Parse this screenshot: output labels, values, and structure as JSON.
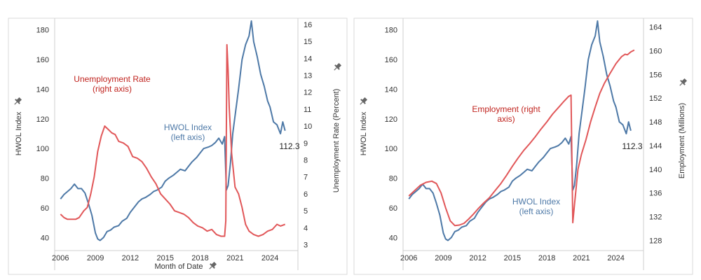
{
  "colors": {
    "hwol": "#4e79a7",
    "secondary": "#e15759",
    "annotation_red": "#c0231e",
    "annotation_blue": "#4e79a7",
    "grid": "#e6e6e6",
    "pin_icon": "#666666"
  },
  "chart_data": [
    {
      "type": "line",
      "xlabel": "Month of Date",
      "ylabel": "HWOL Index",
      "y2label": "Unemployment Rate (Percent)",
      "x_ticks": [
        "2006",
        "2009",
        "2012",
        "2015",
        "2018",
        "2021",
        "2024"
      ],
      "xlim": [
        2005.5,
        2026.4
      ],
      "ylim": [
        34,
        186
      ],
      "y_ticks": [
        40,
        60,
        80,
        100,
        120,
        140,
        160,
        180
      ],
      "y2lim": [
        2.9,
        16.2
      ],
      "y2_ticks": [
        3,
        4,
        5,
        6,
        7,
        8,
        9,
        10,
        11,
        12,
        13,
        14,
        15,
        16
      ],
      "grid": false,
      "end_label": "112.3",
      "annotations": [
        {
          "lines": [
            "Unemployment Rate",
            "(right axis)"
          ],
          "series": "unemployment"
        },
        {
          "lines": [
            "HWOL Index",
            "(left axis)"
          ],
          "series": "hwol"
        }
      ],
      "series": [
        {
          "key": "hwol",
          "axis": "left",
          "points": [
            [
              2006.0,
              66
            ],
            [
              2006.3,
              69
            ],
            [
              2006.6,
              71
            ],
            [
              2006.9,
              73
            ],
            [
              2007.2,
              76
            ],
            [
              2007.5,
              73
            ],
            [
              2007.8,
              73
            ],
            [
              2008.1,
              70
            ],
            [
              2008.4,
              63
            ],
            [
              2008.7,
              55
            ],
            [
              2009.0,
              43
            ],
            [
              2009.2,
              39
            ],
            [
              2009.4,
              38
            ],
            [
              2009.7,
              40
            ],
            [
              2010.0,
              44
            ],
            [
              2010.3,
              45
            ],
            [
              2010.6,
              47
            ],
            [
              2011.0,
              48
            ],
            [
              2011.3,
              51
            ],
            [
              2011.7,
              53
            ],
            [
              2012.0,
              57
            ],
            [
              2012.3,
              60
            ],
            [
              2012.7,
              64
            ],
            [
              2013.0,
              66
            ],
            [
              2013.3,
              67
            ],
            [
              2013.7,
              69
            ],
            [
              2014.0,
              71
            ],
            [
              2014.3,
              72
            ],
            [
              2014.7,
              74
            ],
            [
              2015.0,
              78
            ],
            [
              2015.3,
              80
            ],
            [
              2015.7,
              82
            ],
            [
              2016.0,
              84
            ],
            [
              2016.3,
              86
            ],
            [
              2016.7,
              85
            ],
            [
              2017.0,
              88
            ],
            [
              2017.3,
              91
            ],
            [
              2017.7,
              94
            ],
            [
              2018.0,
              97
            ],
            [
              2018.3,
              100
            ],
            [
              2018.7,
              101
            ],
            [
              2019.0,
              102
            ],
            [
              2019.3,
              104
            ],
            [
              2019.6,
              107
            ],
            [
              2019.9,
              103
            ],
            [
              2020.1,
              108
            ],
            [
              2020.25,
              72
            ],
            [
              2020.4,
              75
            ],
            [
              2020.6,
              90
            ],
            [
              2020.8,
              110
            ],
            [
              2021.0,
              122
            ],
            [
              2021.3,
              140
            ],
            [
              2021.6,
              160
            ],
            [
              2021.9,
              170
            ],
            [
              2022.2,
              176
            ],
            [
              2022.4,
              186
            ],
            [
              2022.6,
              172
            ],
            [
              2022.9,
              162
            ],
            [
              2023.2,
              150
            ],
            [
              2023.5,
              142
            ],
            [
              2023.8,
              132
            ],
            [
              2024.0,
              128
            ],
            [
              2024.3,
              118
            ],
            [
              2024.6,
              116
            ],
            [
              2024.9,
              110
            ],
            [
              2025.1,
              118
            ],
            [
              2025.3,
              112
            ]
          ]
        },
        {
          "key": "unemployment",
          "axis": "right",
          "points": [
            [
              2006.0,
              4.8
            ],
            [
              2006.3,
              4.6
            ],
            [
              2006.6,
              4.5
            ],
            [
              2007.0,
              4.5
            ],
            [
              2007.3,
              4.5
            ],
            [
              2007.6,
              4.6
            ],
            [
              2008.0,
              5.0
            ],
            [
              2008.3,
              5.2
            ],
            [
              2008.6,
              6.0
            ],
            [
              2008.9,
              7.0
            ],
            [
              2009.2,
              8.5
            ],
            [
              2009.5,
              9.4
            ],
            [
              2009.8,
              10.0
            ],
            [
              2010.1,
              9.8
            ],
            [
              2010.4,
              9.6
            ],
            [
              2010.7,
              9.5
            ],
            [
              2011.0,
              9.1
            ],
            [
              2011.4,
              9.0
            ],
            [
              2011.8,
              8.8
            ],
            [
              2012.2,
              8.2
            ],
            [
              2012.6,
              8.1
            ],
            [
              2013.0,
              7.9
            ],
            [
              2013.4,
              7.5
            ],
            [
              2013.8,
              7.0
            ],
            [
              2014.2,
              6.6
            ],
            [
              2014.6,
              6.0
            ],
            [
              2015.0,
              5.7
            ],
            [
              2015.4,
              5.4
            ],
            [
              2015.8,
              5.0
            ],
            [
              2016.2,
              4.9
            ],
            [
              2016.6,
              4.8
            ],
            [
              2017.0,
              4.6
            ],
            [
              2017.4,
              4.3
            ],
            [
              2017.8,
              4.1
            ],
            [
              2018.2,
              4.0
            ],
            [
              2018.6,
              3.8
            ],
            [
              2019.0,
              3.9
            ],
            [
              2019.4,
              3.6
            ],
            [
              2019.8,
              3.5
            ],
            [
              2020.1,
              3.5
            ],
            [
              2020.2,
              4.4
            ],
            [
              2020.3,
              14.8
            ],
            [
              2020.4,
              13.3
            ],
            [
              2020.5,
              11.1
            ],
            [
              2020.7,
              8.4
            ],
            [
              2021.0,
              6.4
            ],
            [
              2021.3,
              6.0
            ],
            [
              2021.6,
              5.2
            ],
            [
              2021.9,
              4.2
            ],
            [
              2022.2,
              3.8
            ],
            [
              2022.6,
              3.6
            ],
            [
              2023.0,
              3.5
            ],
            [
              2023.4,
              3.6
            ],
            [
              2023.8,
              3.8
            ],
            [
              2024.2,
              3.9
            ],
            [
              2024.6,
              4.2
            ],
            [
              2024.9,
              4.1
            ],
            [
              2025.3,
              4.2
            ]
          ]
        }
      ]
    },
    {
      "type": "line",
      "xlabel": "",
      "ylabel": "HWOL Index",
      "y2label": "Employment (Millions)",
      "x_ticks": [
        "2006",
        "2009",
        "2012",
        "2015",
        "2018",
        "2021",
        "2024"
      ],
      "xlim": [
        2005.5,
        2026.4
      ],
      "ylim": [
        34,
        186
      ],
      "y_ticks": [
        40,
        60,
        80,
        100,
        120,
        140,
        160,
        180
      ],
      "y2lim": [
        127,
        165
      ],
      "y2_ticks": [
        128,
        132,
        136,
        140,
        144,
        148,
        152,
        156,
        160,
        164
      ],
      "grid": false,
      "end_label": "112.3",
      "annotations": [
        {
          "lines": [
            "Employment (right",
            "axis)"
          ],
          "series": "employment"
        },
        {
          "lines": [
            "HWOL Index",
            "(left axis)"
          ],
          "series": "hwol"
        }
      ],
      "series": [
        {
          "key": "hwol",
          "axis": "left",
          "points": [
            [
              2006.0,
              66
            ],
            [
              2006.3,
              69
            ],
            [
              2006.6,
              71
            ],
            [
              2006.9,
              73
            ],
            [
              2007.2,
              76
            ],
            [
              2007.5,
              73
            ],
            [
              2007.8,
              73
            ],
            [
              2008.1,
              70
            ],
            [
              2008.4,
              63
            ],
            [
              2008.7,
              55
            ],
            [
              2009.0,
              43
            ],
            [
              2009.2,
              39
            ],
            [
              2009.4,
              38
            ],
            [
              2009.7,
              40
            ],
            [
              2010.0,
              44
            ],
            [
              2010.3,
              45
            ],
            [
              2010.6,
              47
            ],
            [
              2011.0,
              48
            ],
            [
              2011.3,
              51
            ],
            [
              2011.7,
              53
            ],
            [
              2012.0,
              57
            ],
            [
              2012.3,
              60
            ],
            [
              2012.7,
              64
            ],
            [
              2013.0,
              66
            ],
            [
              2013.3,
              67
            ],
            [
              2013.7,
              69
            ],
            [
              2014.0,
              71
            ],
            [
              2014.3,
              72
            ],
            [
              2014.7,
              74
            ],
            [
              2015.0,
              78
            ],
            [
              2015.3,
              80
            ],
            [
              2015.7,
              82
            ],
            [
              2016.0,
              84
            ],
            [
              2016.3,
              86
            ],
            [
              2016.7,
              85
            ],
            [
              2017.0,
              88
            ],
            [
              2017.3,
              91
            ],
            [
              2017.7,
              94
            ],
            [
              2018.0,
              97
            ],
            [
              2018.3,
              100
            ],
            [
              2018.7,
              101
            ],
            [
              2019.0,
              102
            ],
            [
              2019.3,
              104
            ],
            [
              2019.6,
              107
            ],
            [
              2019.9,
              103
            ],
            [
              2020.1,
              108
            ],
            [
              2020.25,
              72
            ],
            [
              2020.4,
              75
            ],
            [
              2020.6,
              90
            ],
            [
              2020.8,
              110
            ],
            [
              2021.0,
              122
            ],
            [
              2021.3,
              140
            ],
            [
              2021.6,
              160
            ],
            [
              2021.9,
              170
            ],
            [
              2022.2,
              176
            ],
            [
              2022.4,
              186
            ],
            [
              2022.6,
              172
            ],
            [
              2022.9,
              162
            ],
            [
              2023.2,
              150
            ],
            [
              2023.5,
              142
            ],
            [
              2023.8,
              132
            ],
            [
              2024.0,
              128
            ],
            [
              2024.3,
              118
            ],
            [
              2024.6,
              116
            ],
            [
              2024.9,
              110
            ],
            [
              2025.1,
              118
            ],
            [
              2025.3,
              112
            ]
          ]
        },
        {
          "key": "employment",
          "axis": "right",
          "points": [
            [
              2006.0,
              135.5
            ],
            [
              2006.5,
              136.4
            ],
            [
              2007.0,
              137.3
            ],
            [
              2007.5,
              137.8
            ],
            [
              2008.0,
              138.0
            ],
            [
              2008.4,
              137.6
            ],
            [
              2008.8,
              136.0
            ],
            [
              2009.2,
              133.5
            ],
            [
              2009.6,
              131.3
            ],
            [
              2010.0,
              130.5
            ],
            [
              2010.4,
              130.6
            ],
            [
              2010.8,
              130.9
            ],
            [
              2011.2,
              131.6
            ],
            [
              2011.6,
              132.4
            ],
            [
              2012.0,
              133.3
            ],
            [
              2012.5,
              134.3
            ],
            [
              2013.0,
              135.2
            ],
            [
              2013.5,
              136.4
            ],
            [
              2014.0,
              137.6
            ],
            [
              2014.5,
              139.0
            ],
            [
              2015.0,
              140.5
            ],
            [
              2015.5,
              141.9
            ],
            [
              2016.0,
              143.2
            ],
            [
              2016.5,
              144.3
            ],
            [
              2017.0,
              145.5
            ],
            [
              2017.5,
              146.8
            ],
            [
              2018.0,
              148.0
            ],
            [
              2018.5,
              149.3
            ],
            [
              2019.0,
              150.4
            ],
            [
              2019.5,
              151.5
            ],
            [
              2019.9,
              152.3
            ],
            [
              2020.1,
              152.5
            ],
            [
              2020.25,
              131.0
            ],
            [
              2020.4,
              134.0
            ],
            [
              2020.7,
              140.0
            ],
            [
              2021.0,
              142.5
            ],
            [
              2021.4,
              145.0
            ],
            [
              2021.8,
              148.0
            ],
            [
              2022.2,
              150.5
            ],
            [
              2022.6,
              152.8
            ],
            [
              2023.0,
              154.5
            ],
            [
              2023.5,
              156.2
            ],
            [
              2024.0,
              157.8
            ],
            [
              2024.5,
              159.0
            ],
            [
              2024.8,
              159.4
            ],
            [
              2025.0,
              159.3
            ],
            [
              2025.3,
              159.8
            ],
            [
              2025.6,
              160.1
            ]
          ]
        }
      ]
    }
  ]
}
